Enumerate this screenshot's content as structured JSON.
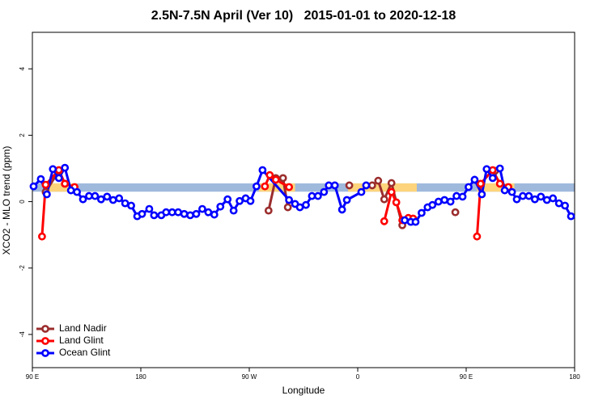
{
  "chart_data": {
    "type": "line",
    "title": "2.5N-7.5N April (Ver 10)   2015-01-01 to 2020-12-18",
    "x_label": "Longitude",
    "y_label": "XCO2 - MLO trend (ppm)",
    "xlim": [
      90,
      540
    ],
    "xticks": [
      {
        "value": 90,
        "label": "90 E"
      },
      180,
      {
        "value": 270,
        "label": "90 W"
      },
      {
        "value": 360,
        "label": "0"
      },
      {
        "value": 450,
        "label": "90 E"
      },
      {
        "value": 540,
        "label": "180"
      }
    ],
    "ylim": [
      -5,
      5.1
    ],
    "yticks": [
      -4,
      -2,
      0,
      2,
      4
    ],
    "legend": "bottom-left",
    "mask": {
      "ylim": [
        0.3,
        0.55
      ],
      "ocean_color": "#9fb9dc",
      "land_color": "#fdd47c",
      "land": [
        [
          103,
          127
        ],
        [
          278,
          308
        ],
        [
          352,
          409
        ],
        [
          459,
          490
        ]
      ]
    },
    "series": [
      {
        "name": "Land Nadir",
        "color": "#9b2d2d",
        "x": [
          101,
          112,
          117,
          null,
          286,
          292,
          298,
          302,
          null,
          353,
          null,
          372,
          377,
          382,
          388,
          397,
          null,
          441,
          null,
          474
        ],
        "values": [
          0.29,
          0.93,
          0.54,
          null,
          -0.27,
          0.71,
          0.71,
          -0.17,
          null,
          0.49,
          null,
          0.49,
          0.63,
          0.07,
          0.56,
          -0.71,
          null,
          -0.32,
          null,
          0.93
        ]
      },
      {
        "name": "Land Glint",
        "color": "#ff0000",
        "x": [
          98,
          101,
          112,
          117,
          125,
          null,
          283,
          287,
          292,
          303,
          null,
          382,
          388,
          392,
          397,
          402,
          406,
          null,
          459,
          462,
          472,
          478,
          485
        ],
        "values": [
          -1.05,
          0.51,
          0.95,
          0.54,
          0.44,
          null,
          0.46,
          0.8,
          0.66,
          0.44,
          null,
          -0.59,
          0.29,
          -0.02,
          -0.56,
          -0.49,
          -0.51,
          null,
          -1.05,
          0.54,
          0.95,
          0.54,
          0.44
        ]
      },
      {
        "name": "Ocean Glint",
        "color": "#0000ff",
        "x": [
          91,
          97,
          102,
          107,
          112,
          117,
          122,
          127,
          132,
          137,
          142,
          147,
          152,
          157,
          162,
          167,
          172,
          177,
          181,
          187,
          191,
          197,
          201,
          206,
          211,
          216,
          221,
          226,
          231,
          236,
          241,
          246,
          252,
          257,
          262,
          267,
          271,
          276,
          281,
          303,
          308,
          312,
          317,
          322,
          327,
          332,
          336,
          341,
          347,
          351,
          363,
          367,
          null,
          399,
          404,
          408,
          413,
          418,
          422,
          427,
          432,
          437,
          442,
          447,
          452,
          457,
          463,
          467,
          472,
          478,
          482,
          488,
          492,
          497,
          502,
          507,
          512,
          517,
          522,
          527,
          532,
          537
        ],
        "values": [
          0.46,
          0.68,
          0.22,
          0.98,
          0.71,
          1.02,
          0.34,
          0.29,
          0.07,
          0.17,
          0.17,
          0.07,
          0.15,
          0.05,
          0.1,
          -0.05,
          -0.12,
          -0.44,
          -0.37,
          -0.22,
          -0.41,
          -0.41,
          -0.32,
          -0.32,
          -0.32,
          -0.37,
          -0.41,
          -0.37,
          -0.22,
          -0.32,
          -0.39,
          -0.15,
          0.07,
          -0.27,
          0.02,
          0.1,
          0.02,
          0.46,
          0.95,
          0.05,
          -0.07,
          -0.17,
          -0.1,
          0.17,
          0.17,
          0.29,
          0.49,
          0.49,
          -0.24,
          0.05,
          0.29,
          0.49,
          null,
          -0.56,
          -0.61,
          -0.61,
          -0.34,
          -0.17,
          -0.1,
          0,
          0.05,
          0,
          0.17,
          0.15,
          0.44,
          0.66,
          0.22,
          0.98,
          0.71,
          1,
          0.34,
          0.29,
          0.07,
          0.17,
          0.17,
          0.07,
          0.15,
          0.05,
          0.1,
          -0.05,
          -0.12,
          -0.44
        ]
      }
    ]
  }
}
